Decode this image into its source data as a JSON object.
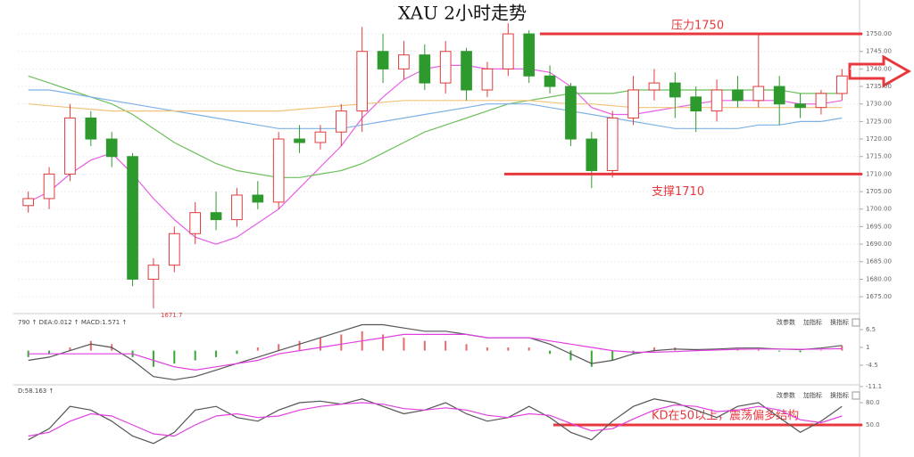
{
  "chart_data": [
    {
      "type": "candlestick",
      "title": "XAU 2小时走势",
      "open": [
        1701,
        1703,
        1710,
        1726,
        1720,
        1715,
        1680,
        1684,
        1693,
        1699,
        1697,
        1704,
        1702,
        1720,
        1719,
        1722,
        1728,
        1745,
        1740,
        1744,
        1736,
        1745,
        1734,
        1740,
        1750,
        1738,
        1735,
        1720,
        1711,
        1726,
        1734,
        1736,
        1732,
        1728,
        1734,
        1731,
        1735,
        1730,
        1729,
        1733
      ],
      "high": [
        1705,
        1712,
        1730,
        1728,
        1722,
        1716,
        1686,
        1695,
        1702,
        1705,
        1706,
        1708,
        1722,
        1724,
        1724,
        1730,
        1752,
        1750,
        1748,
        1747,
        1748,
        1746,
        1742,
        1753,
        1751,
        1741,
        1736,
        1722,
        1728,
        1738,
        1740,
        1739,
        1735,
        1737,
        1738,
        1750,
        1738,
        1733,
        1734,
        1740
      ],
      "low": [
        1699,
        1700,
        1708,
        1718,
        1712,
        1678,
        1671.7,
        1682,
        1690,
        1694,
        1695,
        1700,
        1700,
        1716,
        1717,
        1718,
        1722,
        1736,
        1737,
        1734,
        1733,
        1731,
        1732,
        1738,
        1736,
        1733,
        1718,
        1706,
        1709,
        1724,
        1731,
        1726,
        1722,
        1725,
        1729,
        1729,
        1724,
        1726,
        1727,
        1731
      ],
      "close": [
        1703,
        1710,
        1726,
        1720,
        1715,
        1680,
        1684,
        1693,
        1699,
        1697,
        1704,
        1702,
        1720,
        1719,
        1722,
        1728,
        1745,
        1740,
        1744,
        1736,
        1745,
        1734,
        1740,
        1750,
        1738,
        1735,
        1720,
        1711,
        1726,
        1734,
        1736,
        1732,
        1728,
        1734,
        1731,
        1735,
        1730,
        1729,
        1733,
        1738
      ],
      "up_color": "#e03c3c",
      "down_color": "#2e9a2e",
      "series": [
        {
          "color": "#e65fe6",
          "values": [
            1702,
            1705,
            1710,
            1714,
            1716,
            1710,
            1703,
            1697,
            1692,
            1690,
            1692,
            1696,
            1700,
            1706,
            1712,
            1718,
            1726,
            1732,
            1737,
            1740,
            1741,
            1741,
            1740,
            1740,
            1740,
            1739,
            1735,
            1729,
            1727,
            1727,
            1728,
            1729,
            1730,
            1731,
            1731,
            1731,
            1731,
            1730,
            1730,
            1731
          ]
        },
        {
          "color": "#6cbf5c",
          "values": [
            1738,
            1736,
            1734,
            1732,
            1730,
            1727,
            1723,
            1719,
            1716,
            1713,
            1711,
            1710,
            1709,
            1709,
            1710,
            1711,
            1713,
            1716,
            1719,
            1722,
            1724,
            1726,
            1728,
            1730,
            1731,
            1732,
            1733,
            1733,
            1733,
            1734,
            1734,
            1734,
            1734,
            1734,
            1734,
            1734,
            1734,
            1733,
            1733,
            1733
          ]
        },
        {
          "color": "#7fb2e6",
          "values": [
            1734,
            1734,
            1733,
            1732,
            1731,
            1730,
            1729,
            1728,
            1727,
            1726,
            1725,
            1724,
            1723,
            1723,
            1723,
            1723,
            1724,
            1725,
            1726,
            1727,
            1728,
            1729,
            1730,
            1730,
            1730,
            1729,
            1728,
            1727,
            1726,
            1725,
            1724,
            1723,
            1723,
            1723,
            1723,
            1724,
            1724,
            1725,
            1725,
            1726
          ]
        },
        {
          "color": "#f2c37a",
          "values": [
            1730,
            1729.5,
            1729,
            1728.5,
            1728,
            1728,
            1728,
            1728,
            1728,
            1728,
            1728,
            1728,
            1728,
            1728.5,
            1729,
            1729.5,
            1730,
            1730.5,
            1731,
            1731,
            1731,
            1731,
            1731,
            1731,
            1731,
            1730.5,
            1730,
            1730,
            1729.5,
            1729,
            1729,
            1729,
            1729,
            1729,
            1729,
            1729,
            1729,
            1729,
            1729,
            1729
          ]
        }
      ],
      "ylim": [
        1670.7,
        1758.4
      ],
      "yticks": [
        {
          "value": 1750,
          "label": "1750.00"
        },
        {
          "value": 1745,
          "label": "1745.00"
        },
        {
          "value": 1740,
          "label": "1740.00"
        },
        {
          "value": 1735,
          "label": "1735.00"
        },
        {
          "value": 1730,
          "label": "1730.00"
        },
        {
          "value": 1725,
          "label": "1725.00"
        },
        {
          "value": 1720,
          "label": "1720.00"
        },
        {
          "value": 1715,
          "label": "1715.00"
        },
        {
          "value": 1710,
          "label": "1710.00"
        },
        {
          "value": 1705,
          "label": "1705.00"
        },
        {
          "value": 1700,
          "label": "1700.00"
        },
        {
          "value": 1695,
          "label": "1695.00"
        },
        {
          "value": 1690,
          "label": "1690.00"
        },
        {
          "value": 1685,
          "label": "1685.00"
        },
        {
          "value": 1680,
          "label": "1680.00"
        },
        {
          "value": 1675,
          "label": "1675.00"
        }
      ],
      "grid": true,
      "annotations": [
        {
          "label": "压力1750",
          "value": 1750,
          "color": "#e8383d"
        },
        {
          "label": "支撑1710",
          "value": 1710,
          "color": "#e8383d"
        }
      ],
      "low_label": 1671.7
    },
    {
      "type": "macd",
      "info": "790 ↑ DEA:0.012 ↑ MACD:1.571 ↑",
      "buttons": [
        "改参数",
        "加指标",
        "换指标"
      ],
      "values": [
        -2,
        -1,
        1,
        3,
        2,
        -2,
        -5,
        -4,
        -3,
        -2,
        -1,
        1,
        2,
        3,
        4,
        5,
        6,
        5,
        4,
        3,
        3,
        2,
        1,
        1,
        1,
        -1,
        -3,
        -5,
        -3,
        -1,
        1,
        1,
        0.5,
        0.5,
        0.5,
        0.3,
        -0.3,
        -0.5,
        0.2,
        1.6
      ],
      "up_color": "#e86a6a",
      "down_color": "#3aa63a",
      "series": [
        {
          "color": "#555555",
          "values": [
            -3,
            -2,
            0,
            2,
            1,
            -3,
            -8,
            -9,
            -8,
            -6,
            -4,
            -2,
            0,
            2,
            4,
            6,
            8,
            8,
            7,
            6,
            6,
            5,
            4,
            4,
            4,
            2,
            -1,
            -4,
            -3,
            -1,
            0,
            0.5,
            0.3,
            0.5,
            0.8,
            0.8,
            0.5,
            0.3,
            0.8,
            1.6
          ]
        },
        {
          "color": "#e040e0",
          "values": [
            -1,
            -1,
            -1,
            -1,
            -1,
            -1,
            -3,
            -5,
            -6,
            -5,
            -4,
            -3,
            -1,
            0,
            1,
            2,
            3,
            4,
            5,
            5,
            5,
            5,
            4,
            4,
            4,
            3,
            2,
            1,
            0,
            -0.5,
            -0.5,
            -0.3,
            0,
            0.2,
            0.4,
            0.5,
            0.5,
            0.4,
            0.5,
            0.6
          ]
        }
      ],
      "ylim": [
        -11.4,
        9.8
      ],
      "yticks": [
        6.5,
        1.0,
        -4.5,
        -11.1
      ]
    },
    {
      "type": "line",
      "info": "D:58.163 ↑",
      "buttons": [
        "改参数",
        "加指标",
        "换指标"
      ],
      "series": [
        {
          "color": "#555555",
          "values": [
            30,
            45,
            75,
            70,
            55,
            35,
            25,
            40,
            70,
            75,
            60,
            55,
            70,
            80,
            82,
            78,
            85,
            75,
            65,
            70,
            80,
            65,
            55,
            60,
            75,
            60,
            40,
            30,
            55,
            75,
            85,
            80,
            70,
            60,
            75,
            80,
            60,
            40,
            55,
            75
          ]
        },
        {
          "color": "#e040e0",
          "values": [
            35,
            40,
            55,
            65,
            62,
            50,
            38,
            35,
            50,
            62,
            65,
            60,
            62,
            70,
            75,
            78,
            80,
            78,
            72,
            70,
            73,
            70,
            63,
            60,
            65,
            63,
            52,
            42,
            45,
            58,
            70,
            77,
            75,
            68,
            70,
            75,
            70,
            57,
            53,
            62
          ]
        }
      ],
      "ylim": [
        16.4,
        94.4
      ],
      "yticks": [
        {
          "value": 80,
          "label": "80.0"
        },
        {
          "value": 50,
          "label": "50.0"
        }
      ],
      "annotations": [
        {
          "label": "KD在50以上，震荡偏多结构",
          "value": 50,
          "color": "#e8383d"
        }
      ]
    }
  ]
}
